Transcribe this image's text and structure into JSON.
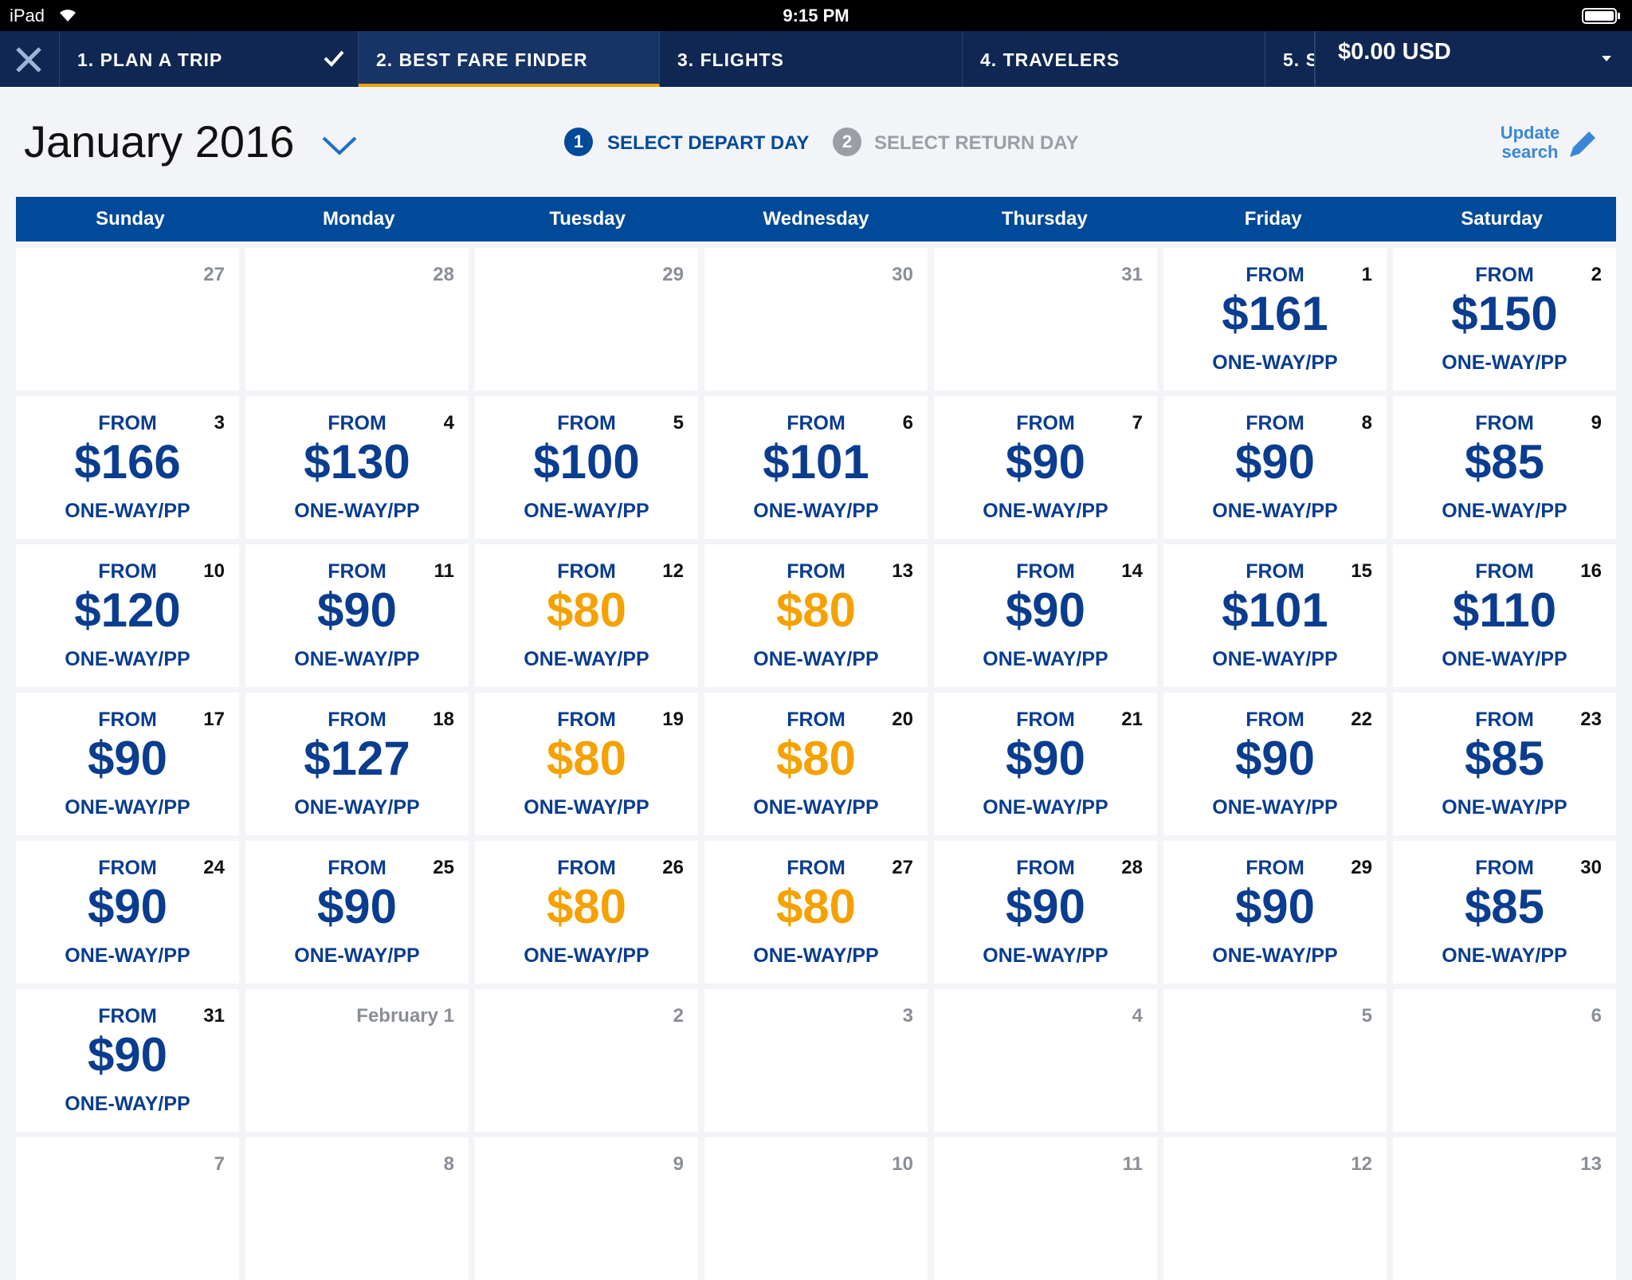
{
  "status_bar": {
    "device": "iPad",
    "time": "9:15 PM"
  },
  "nav": {
    "tabs": [
      "1. PLAN A TRIP",
      "2. BEST FARE FINDER",
      "3. FLIGHTS",
      "4. TRAVELERS",
      "5. S"
    ],
    "total": "$0.00 USD"
  },
  "header": {
    "month": "January 2016",
    "steps": [
      {
        "number": "1",
        "label": "SELECT DEPART DAY"
      },
      {
        "number": "2",
        "label": "SELECT RETURN DAY"
      }
    ],
    "update": "Update search"
  },
  "calendar": {
    "weekdays": [
      "Sunday",
      "Monday",
      "Tuesday",
      "Wednesday",
      "Thursday",
      "Friday",
      "Saturday"
    ],
    "price_prefix": "FROM",
    "price_suffix": "ONE-WAY/PP",
    "weeks": [
      [
        {
          "day": "27"
        },
        {
          "day": "28"
        },
        {
          "day": "29"
        },
        {
          "day": "30"
        },
        {
          "day": "31"
        },
        {
          "day": "1",
          "price": "$161",
          "color": "#0a3d8f"
        },
        {
          "day": "2",
          "price": "$150",
          "color": "#0a3d8f"
        }
      ],
      [
        {
          "day": "3",
          "price": "$166",
          "color": "#0a3d8f"
        },
        {
          "day": "4",
          "price": "$130",
          "color": "#0a3d8f"
        },
        {
          "day": "5",
          "price": "$100",
          "color": "#0a3d8f"
        },
        {
          "day": "6",
          "price": "$101",
          "color": "#0a3d8f"
        },
        {
          "day": "7",
          "price": "$90",
          "color": "#0a3d8f"
        },
        {
          "day": "8",
          "price": "$90",
          "color": "#0a3d8f"
        },
        {
          "day": "9",
          "price": "$85",
          "color": "#0a3d8f"
        }
      ],
      [
        {
          "day": "10",
          "price": "$120",
          "color": "#0a3d8f"
        },
        {
          "day": "11",
          "price": "$90",
          "color": "#0a3d8f"
        },
        {
          "day": "12",
          "price": "$80",
          "color": "#f5a100"
        },
        {
          "day": "13",
          "price": "$80",
          "color": "#f5a100"
        },
        {
          "day": "14",
          "price": "$90",
          "color": "#0a3d8f"
        },
        {
          "day": "15",
          "price": "$101",
          "color": "#0a3d8f"
        },
        {
          "day": "16",
          "price": "$110",
          "color": "#0a3d8f"
        }
      ],
      [
        {
          "day": "17",
          "price": "$90",
          "color": "#0a3d8f"
        },
        {
          "day": "18",
          "price": "$127",
          "color": "#0a3d8f"
        },
        {
          "day": "19",
          "price": "$80",
          "color": "#f5a100"
        },
        {
          "day": "20",
          "price": "$80",
          "color": "#f5a100"
        },
        {
          "day": "21",
          "price": "$90",
          "color": "#0a3d8f"
        },
        {
          "day": "22",
          "price": "$90",
          "color": "#0a3d8f"
        },
        {
          "day": "23",
          "price": "$85",
          "color": "#0a3d8f"
        }
      ],
      [
        {
          "day": "24",
          "price": "$90",
          "color": "#0a3d8f"
        },
        {
          "day": "25",
          "price": "$90",
          "color": "#0a3d8f"
        },
        {
          "day": "26",
          "price": "$80",
          "color": "#f5a100"
        },
        {
          "day": "27",
          "price": "$80",
          "color": "#f5a100"
        },
        {
          "day": "28",
          "price": "$90",
          "color": "#0a3d8f"
        },
        {
          "day": "29",
          "price": "$90",
          "color": "#0a3d8f"
        },
        {
          "day": "30",
          "price": "$85",
          "color": "#0a3d8f"
        }
      ],
      [
        {
          "day": "31",
          "price": "$90",
          "color": "#0a3d8f"
        },
        {
          "day": "February 1"
        },
        {
          "day": "2"
        },
        {
          "day": "3"
        },
        {
          "day": "4"
        },
        {
          "day": "5"
        },
        {
          "day": "6"
        }
      ],
      [
        {
          "day": "7"
        },
        {
          "day": "8"
        },
        {
          "day": "9"
        },
        {
          "day": "10"
        },
        {
          "day": "11"
        },
        {
          "day": "12"
        },
        {
          "day": "13"
        }
      ]
    ]
  }
}
